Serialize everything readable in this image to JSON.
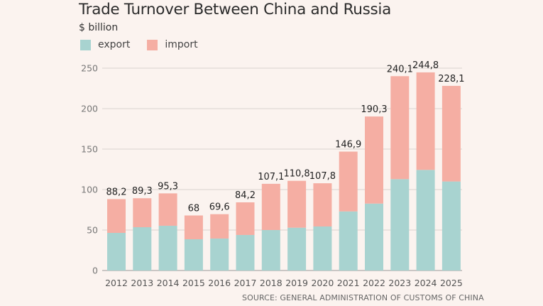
{
  "chart_data": {
    "type": "bar",
    "stacked": true,
    "title": "Trade Turnover Between China and Russia",
    "subtitle": "$ billion",
    "xlabel": "",
    "ylabel": "$ billion",
    "ylim": [
      0,
      250
    ],
    "yticks": [
      0,
      50,
      100,
      150,
      200,
      250
    ],
    "grid": true,
    "legend_position": "top-left",
    "categories": [
      "2012",
      "2013",
      "2014",
      "2015",
      "2016",
      "2017",
      "2018",
      "2019",
      "2020",
      "2021",
      "2022",
      "2023",
      "2024",
      "2025"
    ],
    "series": [
      {
        "name": "export",
        "color": "#a8d3d0",
        "values": [
          46.5,
          53.5,
          55.3,
          38.6,
          39.5,
          43.9,
          50.0,
          52.9,
          54.4,
          73.0,
          82.7,
          112.9,
          124.3,
          110.0
        ]
      },
      {
        "name": "import",
        "color": "#f5aea3",
        "values": [
          41.7,
          35.8,
          40.0,
          29.4,
          30.1,
          40.3,
          57.1,
          57.9,
          53.4,
          73.9,
          107.6,
          127.2,
          120.5,
          118.1
        ]
      }
    ],
    "totals_labels": [
      "88,2",
      "89,3",
      "95,3",
      "68",
      "69,6",
      "84,2",
      "107,1",
      "110,8",
      "107,8",
      "146,9",
      "190,3",
      "240,1",
      "244,8",
      "228,1"
    ],
    "totals": [
      88.2,
      89.3,
      95.3,
      68,
      69.6,
      84.2,
      107.1,
      110.8,
      107.8,
      146.9,
      190.3,
      240.1,
      244.8,
      228.1
    ],
    "source": "SOURCE: GENERAL ADMINISTRATION OF CUSTOMS OF CHINA"
  },
  "legend": {
    "export_label": "export",
    "import_label": "import"
  }
}
